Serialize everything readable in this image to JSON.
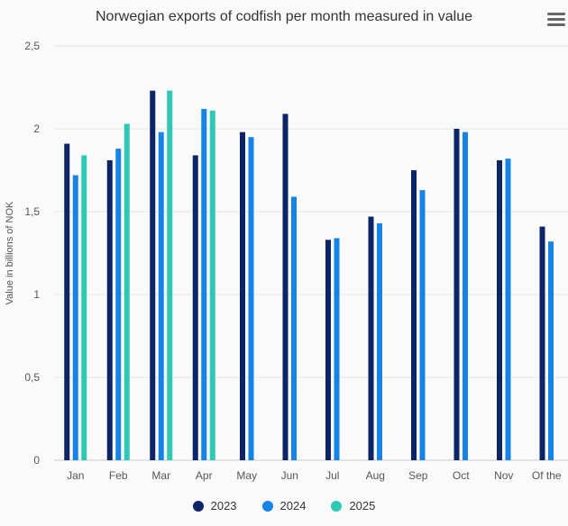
{
  "chart_data": {
    "type": "bar",
    "title": "Norwegian exports of codfish per month measured in value",
    "ylabel": "Value in billions of NOK",
    "xlabel": "",
    "ylim": [
      0,
      2.5
    ],
    "yticks": [
      "0",
      "0,5",
      "1",
      "1,5",
      "2",
      "2,5"
    ],
    "ytick_values": [
      0,
      0.5,
      1,
      1.5,
      2,
      2.5
    ],
    "categories": [
      "Jan",
      "Feb",
      "Mar",
      "Apr",
      "May",
      "Jun",
      "Jul",
      "Aug",
      "Sep",
      "Oct",
      "Nov",
      "Of the"
    ],
    "series": [
      {
        "name": "2023",
        "color": "#0b2566",
        "values": [
          1.91,
          1.81,
          2.23,
          1.84,
          1.98,
          2.09,
          1.33,
          1.47,
          1.75,
          2.0,
          1.81,
          1.41
        ]
      },
      {
        "name": "2024",
        "color": "#1684e6",
        "values": [
          1.72,
          1.88,
          1.98,
          2.12,
          1.95,
          1.59,
          1.34,
          1.43,
          1.63,
          1.98,
          1.82,
          1.32
        ]
      },
      {
        "name": "2025",
        "color": "#2ec9b4",
        "values": [
          1.84,
          2.03,
          2.23,
          2.11,
          null,
          null,
          null,
          null,
          null,
          null,
          null,
          null
        ]
      }
    ],
    "grid": true,
    "legend_position": "bottom"
  },
  "menu_icon": "hamburger-menu-icon"
}
